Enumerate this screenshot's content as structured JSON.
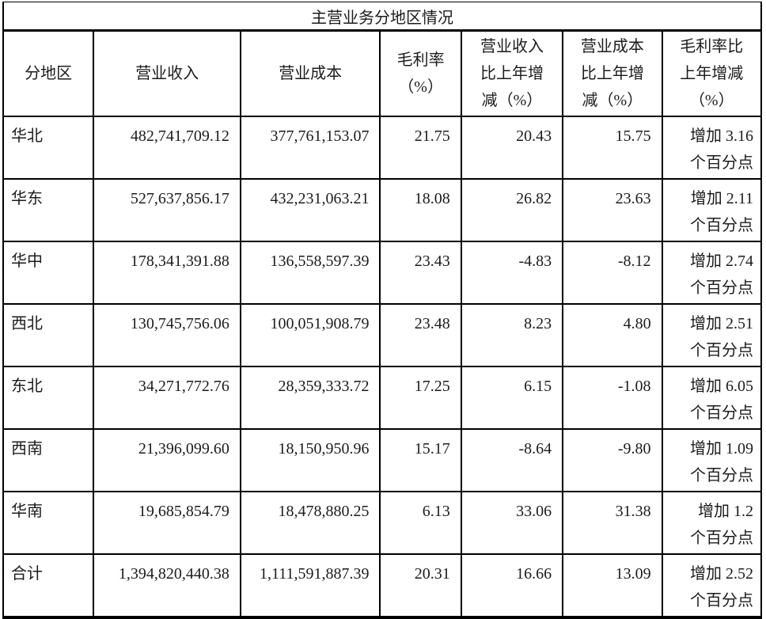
{
  "table": {
    "title": "主营业务分地区情况",
    "columns": {
      "region": "分地区",
      "revenue": "营业收入",
      "cost": "营业成本",
      "margin": "毛利率\n（%）",
      "revenue_change": "营业收入\n比上年增\n减（%）",
      "cost_change": "营业成本\n比上年增\n减（%）",
      "margin_change": "毛利率比\n上年增减\n（%）"
    },
    "rows": [
      {
        "region": "华北",
        "revenue": "482,741,709.12",
        "cost": "377,761,153.07",
        "margin": "21.75",
        "revenue_change": "20.43",
        "cost_change": "15.75",
        "margin_change": "增加 3.16\n个百分点"
      },
      {
        "region": "华东",
        "revenue": "527,637,856.17",
        "cost": "432,231,063.21",
        "margin": "18.08",
        "revenue_change": "26.82",
        "cost_change": "23.63",
        "margin_change": "增加 2.11\n个百分点"
      },
      {
        "region": "华中",
        "revenue": "178,341,391.88",
        "cost": "136,558,597.39",
        "margin": "23.43",
        "revenue_change": "-4.83",
        "cost_change": "-8.12",
        "margin_change": "增加 2.74\n个百分点"
      },
      {
        "region": "西北",
        "revenue": "130,745,756.06",
        "cost": "100,051,908.79",
        "margin": "23.48",
        "revenue_change": "8.23",
        "cost_change": "4.80",
        "margin_change": "增加 2.51\n个百分点"
      },
      {
        "region": "东北",
        "revenue": "34,271,772.76",
        "cost": "28,359,333.72",
        "margin": "17.25",
        "revenue_change": "6.15",
        "cost_change": "-1.08",
        "margin_change": "增加 6.05\n个百分点"
      },
      {
        "region": "西南",
        "revenue": "21,396,099.60",
        "cost": "18,150,950.96",
        "margin": "15.17",
        "revenue_change": "-8.64",
        "cost_change": "-9.80",
        "margin_change": "增加 1.09\n个百分点"
      },
      {
        "region": "华南",
        "revenue": "19,685,854.79",
        "cost": "18,478,880.25",
        "margin": "6.13",
        "revenue_change": "33.06",
        "cost_change": "31.38",
        "margin_change": "增加 1.2\n个百分点"
      },
      {
        "region": "合计",
        "revenue": "1,394,820,440.38",
        "cost": "1,111,591,887.39",
        "margin": "20.31",
        "revenue_change": "16.66",
        "cost_change": "13.09",
        "margin_change": "增加 2.52\n个百分点"
      }
    ]
  }
}
